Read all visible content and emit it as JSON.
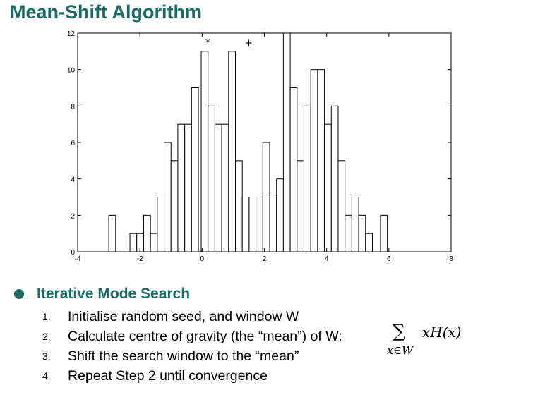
{
  "slide": {
    "title": "Mean-Shift Algorithm",
    "section_heading": "Iterative Mode Search",
    "steps": [
      {
        "num": "1.",
        "text": "Initialise random seed, and window W"
      },
      {
        "num": "2.",
        "text": "Calculate centre of gravity (the “mean”) of W:"
      },
      {
        "num": "3.",
        "text": "Shift the search window to the “mean”"
      },
      {
        "num": "4.",
        "text": "Repeat Step 2 until convergence"
      }
    ],
    "formula": {
      "sigma": "∑",
      "expr": "xH(x)",
      "subscript": "x∈W"
    },
    "accent_color": "#1a6b66"
  },
  "chart_data": {
    "type": "bar",
    "title": "",
    "xlabel": "",
    "ylabel": "",
    "xlim": [
      -4,
      8
    ],
    "ylim": [
      0,
      12
    ],
    "x_ticks": [
      -4,
      -2,
      0,
      2,
      4,
      6,
      8
    ],
    "y_ticks": [
      0,
      2,
      4,
      6,
      8,
      10,
      12
    ],
    "x_tick_labels": [
      "-4",
      "-2",
      "0",
      "2",
      "4",
      "6",
      "8"
    ],
    "y_tick_labels": [
      "0",
      "2",
      "4",
      "6",
      "8",
      "10",
      "12"
    ],
    "grid": false,
    "bin_width": 0.22,
    "bins": [
      {
        "x": -2.89,
        "value": 2
      },
      {
        "x": -2.21,
        "value": 1
      },
      {
        "x": -1.99,
        "value": 1
      },
      {
        "x": -1.77,
        "value": 2
      },
      {
        "x": -1.55,
        "value": 1
      },
      {
        "x": -1.33,
        "value": 3
      },
      {
        "x": -1.11,
        "value": 6
      },
      {
        "x": -0.89,
        "value": 5
      },
      {
        "x": -0.67,
        "value": 7
      },
      {
        "x": -0.45,
        "value": 7
      },
      {
        "x": -0.23,
        "value": 9
      },
      {
        "x": 0.08,
        "value": 11
      },
      {
        "x": 0.3,
        "value": 8
      },
      {
        "x": 0.52,
        "value": 7
      },
      {
        "x": 0.74,
        "value": 7
      },
      {
        "x": 0.96,
        "value": 11
      },
      {
        "x": 1.18,
        "value": 5
      },
      {
        "x": 1.4,
        "value": 3
      },
      {
        "x": 1.62,
        "value": 3
      },
      {
        "x": 1.84,
        "value": 3
      },
      {
        "x": 2.06,
        "value": 6
      },
      {
        "x": 2.28,
        "value": 3
      },
      {
        "x": 2.5,
        "value": 4
      },
      {
        "x": 2.72,
        "value": 12
      },
      {
        "x": 2.94,
        "value": 9
      },
      {
        "x": 3.16,
        "value": 5
      },
      {
        "x": 3.38,
        "value": 8
      },
      {
        "x": 3.6,
        "value": 10
      },
      {
        "x": 3.82,
        "value": 10
      },
      {
        "x": 4.04,
        "value": 7
      },
      {
        "x": 4.26,
        "value": 8
      },
      {
        "x": 4.48,
        "value": 5
      },
      {
        "x": 4.7,
        "value": 2
      },
      {
        "x": 4.92,
        "value": 3
      },
      {
        "x": 5.14,
        "value": 2
      },
      {
        "x": 5.36,
        "value": 1
      },
      {
        "x": 5.84,
        "value": 2
      }
    ],
    "markers": [
      {
        "symbol": "*",
        "x": 0.18,
        "y": 11.5
      },
      {
        "symbol": "+",
        "x": 1.5,
        "y": 11.5
      }
    ]
  }
}
